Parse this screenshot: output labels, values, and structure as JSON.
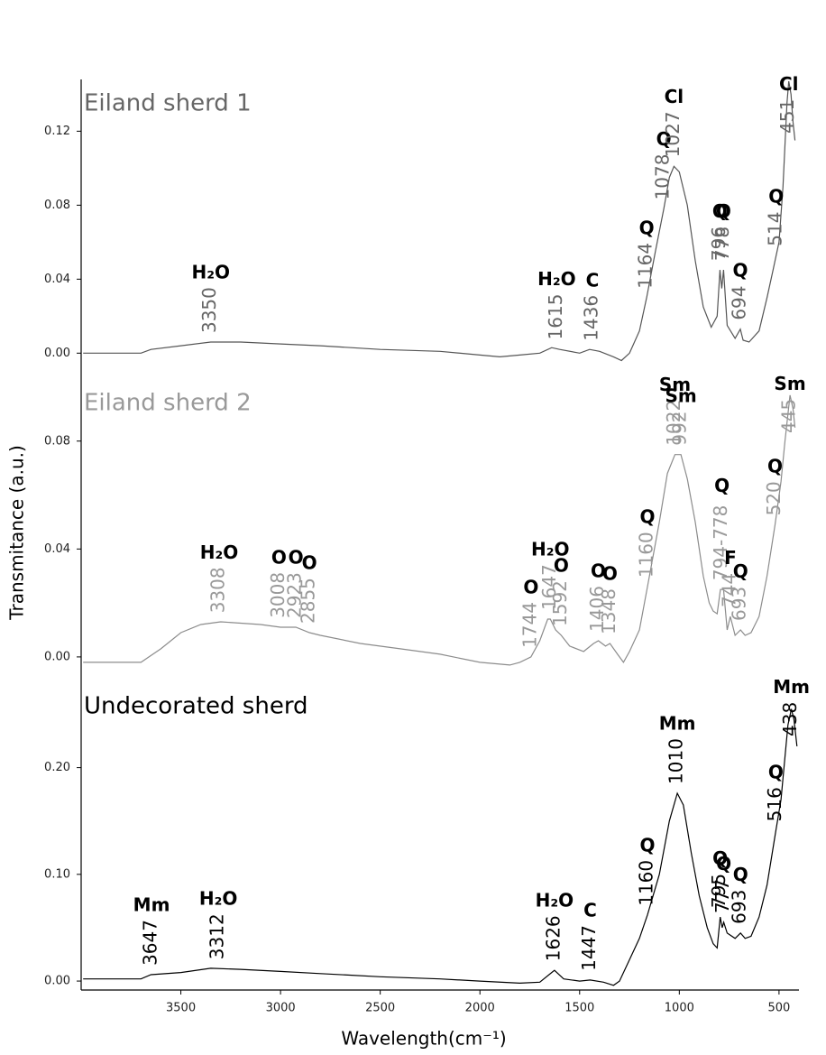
{
  "chart_data": [
    {
      "type": "line",
      "title": "Eiland sherd 1",
      "color": "#555555",
      "title_color": "#666666",
      "xlim": [
        4000,
        400
      ],
      "ylim": [
        -0.014,
        0.148
      ],
      "yticks": [
        {
          "value": 0,
          "label": "0.00"
        },
        {
          "value": 0.04,
          "label": "0.04"
        },
        {
          "value": 0.08,
          "label": "0.08"
        },
        {
          "value": 0.12,
          "label": "0.12"
        }
      ],
      "x": [
        3990,
        3700,
        3650,
        3500,
        3350,
        3200,
        3000,
        2800,
        2500,
        2200,
        2000,
        1900,
        1800,
        1700,
        1640,
        1600,
        1500,
        1450,
        1400,
        1330,
        1290,
        1250,
        1200,
        1164,
        1120,
        1078,
        1050,
        1027,
        1000,
        960,
        920,
        880,
        840,
        810,
        796,
        787,
        778,
        760,
        720,
        694,
        680,
        650,
        600,
        560,
        530,
        500,
        480,
        460,
        451,
        440,
        430,
        420
      ],
      "values": [
        0.0,
        0.0,
        0.002,
        0.004,
        0.006,
        0.006,
        0.005,
        0.004,
        0.002,
        0.001,
        -0.001,
        -0.002,
        -0.001,
        0.0,
        0.003,
        0.002,
        0.0,
        0.002,
        0.001,
        -0.002,
        -0.004,
        0.0,
        0.012,
        0.03,
        0.055,
        0.078,
        0.095,
        0.101,
        0.098,
        0.08,
        0.05,
        0.025,
        0.014,
        0.02,
        0.045,
        0.035,
        0.045,
        0.015,
        0.008,
        0.013,
        0.007,
        0.006,
        0.012,
        0.03,
        0.045,
        0.06,
        0.09,
        0.135,
        0.147,
        0.14,
        0.125,
        0.115
      ],
      "annotations": [
        {
          "x": 3350,
          "label": "3350",
          "assignment": "H₂O"
        },
        {
          "x": 1615,
          "label": "1615",
          "assignment": "H₂O"
        },
        {
          "x": 1436,
          "label": "1436",
          "assignment": "C"
        },
        {
          "x": 1164,
          "label": "1164",
          "assignment": "Q"
        },
        {
          "x": 1078,
          "label": "1078",
          "assignment": "Q"
        },
        {
          "x": 1027,
          "label": "1027",
          "assignment": "Cl"
        },
        {
          "x": 796,
          "label": "796",
          "assignment": "Q"
        },
        {
          "x": 778,
          "label": "778",
          "assignment": "Q"
        },
        {
          "x": 694,
          "label": "694",
          "assignment": "Q"
        },
        {
          "x": 514,
          "label": "514",
          "assignment": "Q"
        },
        {
          "x": 451,
          "label": "451",
          "assignment": "Cl"
        }
      ]
    },
    {
      "type": "line",
      "title": "Eiland sherd 2",
      "color": "#8c8c8c",
      "title_color": "#999999",
      "ylabel": "Transmitance (a.u.)",
      "xlim": [
        4000,
        400
      ],
      "ylim": [
        -0.0094,
        0.103
      ],
      "yticks": [
        {
          "value": 0,
          "label": "0.00"
        },
        {
          "value": 0.04,
          "label": "0.04"
        },
        {
          "value": 0.08,
          "label": "0.08"
        }
      ],
      "x": [
        3990,
        3700,
        3600,
        3500,
        3400,
        3300,
        3200,
        3100,
        3000,
        2923,
        2855,
        2800,
        2600,
        2400,
        2200,
        2000,
        1850,
        1800,
        1744,
        1700,
        1660,
        1647,
        1620,
        1592,
        1550,
        1480,
        1430,
        1406,
        1370,
        1348,
        1310,
        1280,
        1250,
        1200,
        1160,
        1100,
        1060,
        1022,
        992,
        960,
        920,
        880,
        850,
        830,
        810,
        794,
        778,
        760,
        744,
        720,
        693,
        670,
        640,
        600,
        560,
        520,
        490,
        470,
        445,
        430,
        420
      ],
      "values": [
        -0.002,
        -0.002,
        0.003,
        0.009,
        0.012,
        0.013,
        0.0125,
        0.012,
        0.011,
        0.011,
        0.009,
        0.008,
        0.005,
        0.003,
        0.001,
        -0.002,
        -0.003,
        -0.002,
        0.0,
        0.006,
        0.014,
        0.014,
        0.01,
        0.008,
        0.004,
        0.002,
        0.005,
        0.006,
        0.004,
        0.005,
        0.001,
        -0.002,
        0.002,
        0.01,
        0.026,
        0.05,
        0.068,
        0.075,
        0.075,
        0.066,
        0.05,
        0.03,
        0.02,
        0.017,
        0.016,
        0.025,
        0.025,
        0.01,
        0.015,
        0.008,
        0.01,
        0.008,
        0.009,
        0.015,
        0.03,
        0.049,
        0.065,
        0.08,
        0.097,
        0.092,
        0.085
      ],
      "annotations": [
        {
          "x": 3308,
          "label": "3308",
          "assignment": "H₂O"
        },
        {
          "x": 3008,
          "label": "3008",
          "assignment": "O"
        },
        {
          "x": 2923,
          "label": "2923",
          "assignment": "O"
        },
        {
          "x": 2855,
          "label": "2855",
          "assignment": "O"
        },
        {
          "x": 1744,
          "label": "1744",
          "assignment": "O"
        },
        {
          "x": 1647,
          "label": "1647",
          "assignment": "H₂O"
        },
        {
          "x": 1592,
          "label": "1592",
          "assignment": "O"
        },
        {
          "x": 1406,
          "label": "1406",
          "assignment": "O"
        },
        {
          "x": 1348,
          "label": "1348",
          "assignment": "O"
        },
        {
          "x": 1160,
          "label": "1160",
          "assignment": "Q"
        },
        {
          "x": 1022,
          "label": "1022",
          "assignment": "Sm"
        },
        {
          "x": 992,
          "label": "992",
          "assignment": "Sm"
        },
        {
          "x": 786,
          "label": "794-778",
          "assignment": "Q"
        },
        {
          "x": 744,
          "label": "744",
          "assignment": "F"
        },
        {
          "x": 693,
          "label": "693",
          "assignment": "Q"
        },
        {
          "x": 520,
          "label": "520",
          "assignment": "Q"
        },
        {
          "x": 445,
          "label": "445",
          "assignment": "Sm"
        }
      ]
    },
    {
      "type": "line",
      "title": "Undecorated sherd",
      "color": "#000000",
      "title_color": "#000000",
      "xlabel": "Wavelength(cm⁻¹)",
      "xlim": [
        4000,
        400
      ],
      "ylim": [
        -0.0084,
        0.28
      ],
      "xticks": [
        3500,
        3000,
        2500,
        2000,
        1500,
        1000,
        500
      ],
      "yticks": [
        {
          "value": 0,
          "label": "0.00"
        },
        {
          "value": 0.1,
          "label": "0.10"
        },
        {
          "value": 0.2,
          "label": "0.20"
        }
      ],
      "x": [
        3990,
        3700,
        3650,
        3500,
        3350,
        3200,
        3000,
        2800,
        2500,
        2200,
        2000,
        1800,
        1700,
        1640,
        1626,
        1580,
        1500,
        1447,
        1380,
        1330,
        1300,
        1250,
        1200,
        1160,
        1100,
        1050,
        1010,
        980,
        940,
        900,
        860,
        830,
        810,
        795,
        785,
        777,
        760,
        720,
        693,
        670,
        640,
        600,
        560,
        516,
        490,
        470,
        455,
        438,
        425,
        410
      ],
      "values": [
        0.002,
        0.002,
        0.006,
        0.008,
        0.012,
        0.011,
        0.009,
        0.007,
        0.004,
        0.002,
        0.0,
        -0.002,
        -0.001,
        0.008,
        0.01,
        0.002,
        0.0,
        0.001,
        -0.001,
        -0.004,
        0.0,
        0.02,
        0.04,
        0.062,
        0.1,
        0.15,
        0.176,
        0.165,
        0.12,
        0.08,
        0.05,
        0.035,
        0.031,
        0.06,
        0.05,
        0.055,
        0.045,
        0.04,
        0.045,
        0.04,
        0.042,
        0.06,
        0.09,
        0.141,
        0.17,
        0.21,
        0.24,
        0.255,
        0.245,
        0.22
      ],
      "annotations": [
        {
          "x": 3647,
          "label": "3647",
          "assignment": "Mm"
        },
        {
          "x": 3312,
          "label": "3312",
          "assignment": "H₂O"
        },
        {
          "x": 1626,
          "label": "1626",
          "assignment": "H₂O"
        },
        {
          "x": 1447,
          "label": "1447",
          "assignment": "C"
        },
        {
          "x": 1160,
          "label": "1160",
          "assignment": "Q"
        },
        {
          "x": 1010,
          "label": "1010",
          "assignment": "Mm"
        },
        {
          "x": 795,
          "label": "795",
          "assignment": "Q"
        },
        {
          "x": 777,
          "label": "777",
          "assignment": "Q"
        },
        {
          "x": 693,
          "label": "693",
          "assignment": "Q"
        },
        {
          "x": 516,
          "label": "516",
          "assignment": "Q"
        },
        {
          "x": 438,
          "label": "438",
          "assignment": "Mm"
        }
      ]
    }
  ]
}
